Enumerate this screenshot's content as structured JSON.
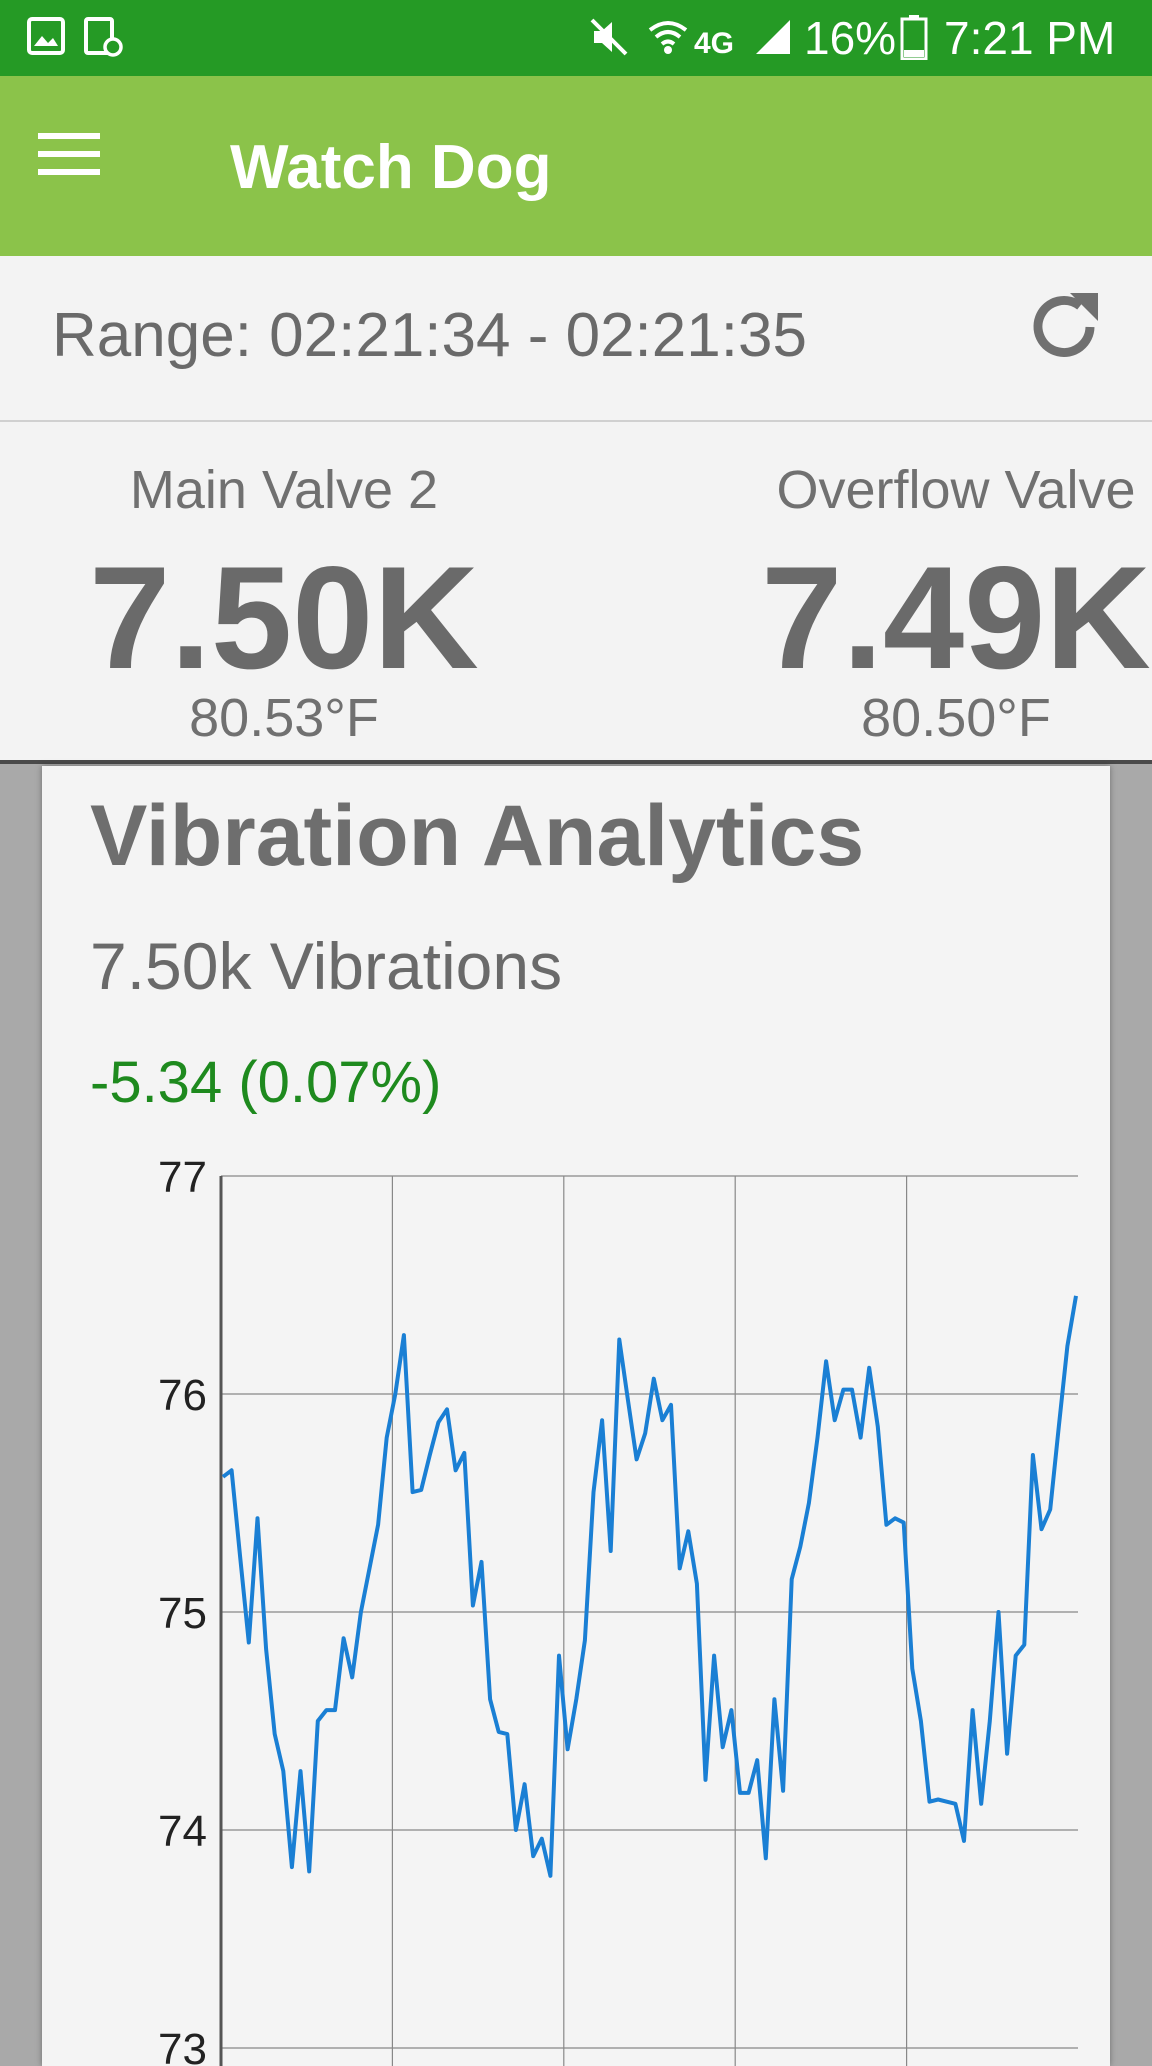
{
  "status_bar": {
    "battery": "16%",
    "time": "7:21 PM",
    "network": "4G",
    "icons": [
      "gallery-icon",
      "screen-rotation-icon",
      "mute-icon",
      "wifi-icon",
      "4g-lte-icon",
      "signal-icon",
      "battery-icon"
    ]
  },
  "app_bar": {
    "title": "Watch Dog",
    "menu_icon": "hamburger-menu-icon"
  },
  "range": {
    "text": "Range: 02:21:34 - 02:21:35",
    "refresh_icon": "refresh-icon"
  },
  "valves": [
    {
      "name": "Main Valve 2",
      "value": "7.50K",
      "temperature": "80.53°F"
    },
    {
      "name": "Overflow Valve",
      "value": "7.49K",
      "temperature": "80.50°F"
    }
  ],
  "analytics": {
    "title": "Vibration Analytics",
    "count_text": "7.50k Vibrations",
    "delta_text": "-5.34 (0.07%)"
  },
  "colors": {
    "status_bar": "#259a25",
    "app_bar": "#8bc34a",
    "line": "#1a7fd4",
    "delta": "#1e8a1e"
  },
  "chart_data": {
    "type": "line",
    "ylim": [
      73,
      77
    ],
    "y_ticks": [
      "77",
      "76",
      "75",
      "74",
      "73"
    ],
    "grid": true,
    "x_gridlines": 5,
    "series": [
      {
        "values": [
          75.62,
          75.65,
          75.25,
          74.86,
          75.43,
          74.83,
          74.44,
          74.27,
          73.83,
          74.27,
          73.81,
          74.5,
          74.55,
          74.55,
          74.88,
          74.7,
          75.0,
          75.2,
          75.4,
          75.8,
          76.0,
          76.27,
          75.55,
          75.56,
          75.72,
          75.87,
          75.93,
          75.65,
          75.73,
          75.03,
          75.23,
          74.6,
          74.45,
          74.44,
          74.0,
          74.21,
          73.88,
          73.96,
          73.79,
          74.8,
          74.37,
          74.6,
          74.87,
          75.55,
          75.88,
          75.28,
          76.25,
          75.97,
          75.7,
          75.82,
          76.07,
          75.88,
          75.95,
          75.2,
          75.37,
          75.13,
          74.23,
          74.8,
          74.38,
          74.55,
          74.17,
          74.17,
          74.32,
          73.87,
          74.6,
          74.18,
          75.15,
          75.3,
          75.5,
          75.8,
          76.15,
          75.88,
          76.02,
          76.02,
          75.8,
          76.12,
          75.85,
          75.4,
          75.43,
          75.41,
          74.74,
          74.5,
          74.13,
          74.14,
          74.13,
          74.12,
          73.95,
          74.55,
          74.12,
          74.5,
          75.0,
          74.35,
          74.8,
          74.85,
          75.72,
          75.38,
          75.47,
          75.85,
          76.22,
          76.45
        ]
      }
    ]
  }
}
